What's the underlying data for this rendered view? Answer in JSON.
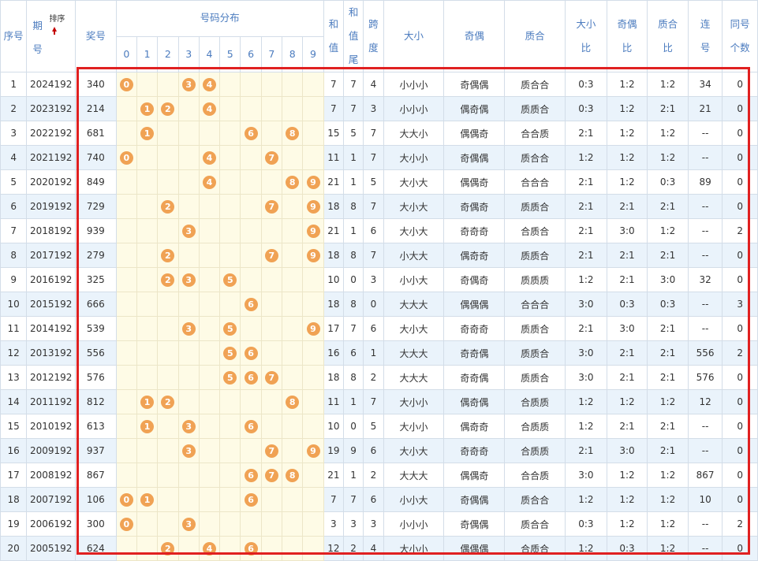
{
  "colors": {
    "header_text": "#4c7cbf",
    "ball": "#f0a254",
    "highlight_border": "#e02020",
    "stripe": "#eaf3fb",
    "dist_bg": "#fefbe6"
  },
  "header": {
    "serial": "序号",
    "period_top": "期",
    "period_bottom": "号",
    "sort_label": "排序",
    "sort_icon": "sort-up-arrow-icon",
    "number": "奖号",
    "distribution": "号码分布",
    "digits": [
      "0",
      "1",
      "2",
      "3",
      "4",
      "5",
      "6",
      "7",
      "8",
      "9"
    ],
    "sum_top": "和",
    "sum_bottom": "值",
    "sumtail_1": "和",
    "sumtail_2": "值",
    "sumtail_3": "尾",
    "span_top": "跨",
    "span_bottom": "度",
    "bigsmall": "大小",
    "oddeven": "奇偶",
    "primecomp": "质合",
    "bs_ratio_top": "大小",
    "bs_ratio_bottom": "比",
    "oe_ratio_top": "奇偶",
    "oe_ratio_bottom": "比",
    "pc_ratio_top": "质合",
    "pc_ratio_bottom": "比",
    "consec_top": "连",
    "consec_bottom": "号",
    "same_top": "同号",
    "same_bottom": "个数"
  },
  "rows": [
    {
      "serial": "1",
      "period": "2024192",
      "number": "340",
      "digits": [
        0,
        3,
        4
      ],
      "sum": "7",
      "sumtail": "7",
      "span": "4",
      "bs": "小小小",
      "oe": "奇偶偶",
      "pc": "质合合",
      "bs_ratio": "0:3",
      "oe_ratio": "1:2",
      "pc_ratio": "1:2",
      "consec": "34",
      "same": "0"
    },
    {
      "serial": "2",
      "period": "2023192",
      "number": "214",
      "digits": [
        1,
        2,
        4
      ],
      "sum": "7",
      "sumtail": "7",
      "span": "3",
      "bs": "小小小",
      "oe": "偶奇偶",
      "pc": "质质合",
      "bs_ratio": "0:3",
      "oe_ratio": "1:2",
      "pc_ratio": "2:1",
      "consec": "21",
      "same": "0"
    },
    {
      "serial": "3",
      "period": "2022192",
      "number": "681",
      "digits": [
        1,
        6,
        8
      ],
      "sum": "15",
      "sumtail": "5",
      "span": "7",
      "bs": "大大小",
      "oe": "偶偶奇",
      "pc": "合合质",
      "bs_ratio": "2:1",
      "oe_ratio": "1:2",
      "pc_ratio": "1:2",
      "consec": "--",
      "same": "0"
    },
    {
      "serial": "4",
      "period": "2021192",
      "number": "740",
      "digits": [
        0,
        4,
        7
      ],
      "sum": "11",
      "sumtail": "1",
      "span": "7",
      "bs": "大小小",
      "oe": "奇偶偶",
      "pc": "质合合",
      "bs_ratio": "1:2",
      "oe_ratio": "1:2",
      "pc_ratio": "1:2",
      "consec": "--",
      "same": "0"
    },
    {
      "serial": "5",
      "period": "2020192",
      "number": "849",
      "digits": [
        4,
        8,
        9
      ],
      "sum": "21",
      "sumtail": "1",
      "span": "5",
      "bs": "大小大",
      "oe": "偶偶奇",
      "pc": "合合合",
      "bs_ratio": "2:1",
      "oe_ratio": "1:2",
      "pc_ratio": "0:3",
      "consec": "89",
      "same": "0"
    },
    {
      "serial": "6",
      "period": "2019192",
      "number": "729",
      "digits": [
        2,
        7,
        9
      ],
      "sum": "18",
      "sumtail": "8",
      "span": "7",
      "bs": "大小大",
      "oe": "奇偶奇",
      "pc": "质质合",
      "bs_ratio": "2:1",
      "oe_ratio": "2:1",
      "pc_ratio": "2:1",
      "consec": "--",
      "same": "0"
    },
    {
      "serial": "7",
      "period": "2018192",
      "number": "939",
      "digits": [
        3,
        9
      ],
      "sum": "21",
      "sumtail": "1",
      "span": "6",
      "bs": "大小大",
      "oe": "奇奇奇",
      "pc": "合质合",
      "bs_ratio": "2:1",
      "oe_ratio": "3:0",
      "pc_ratio": "1:2",
      "consec": "--",
      "same": "2"
    },
    {
      "serial": "8",
      "period": "2017192",
      "number": "279",
      "digits": [
        2,
        7,
        9
      ],
      "sum": "18",
      "sumtail": "8",
      "span": "7",
      "bs": "小大大",
      "oe": "偶奇奇",
      "pc": "质质合",
      "bs_ratio": "2:1",
      "oe_ratio": "2:1",
      "pc_ratio": "2:1",
      "consec": "--",
      "same": "0"
    },
    {
      "serial": "9",
      "period": "2016192",
      "number": "325",
      "digits": [
        2,
        3,
        5
      ],
      "sum": "10",
      "sumtail": "0",
      "span": "3",
      "bs": "小小大",
      "oe": "奇偶奇",
      "pc": "质质质",
      "bs_ratio": "1:2",
      "oe_ratio": "2:1",
      "pc_ratio": "3:0",
      "consec": "32",
      "same": "0"
    },
    {
      "serial": "10",
      "period": "2015192",
      "number": "666",
      "digits": [
        6
      ],
      "sum": "18",
      "sumtail": "8",
      "span": "0",
      "bs": "大大大",
      "oe": "偶偶偶",
      "pc": "合合合",
      "bs_ratio": "3:0",
      "oe_ratio": "0:3",
      "pc_ratio": "0:3",
      "consec": "--",
      "same": "3"
    },
    {
      "serial": "11",
      "period": "2014192",
      "number": "539",
      "digits": [
        3,
        5,
        9
      ],
      "sum": "17",
      "sumtail": "7",
      "span": "6",
      "bs": "大小大",
      "oe": "奇奇奇",
      "pc": "质质合",
      "bs_ratio": "2:1",
      "oe_ratio": "3:0",
      "pc_ratio": "2:1",
      "consec": "--",
      "same": "0"
    },
    {
      "serial": "12",
      "period": "2013192",
      "number": "556",
      "digits": [
        5,
        6
      ],
      "sum": "16",
      "sumtail": "6",
      "span": "1",
      "bs": "大大大",
      "oe": "奇奇偶",
      "pc": "质质合",
      "bs_ratio": "3:0",
      "oe_ratio": "2:1",
      "pc_ratio": "2:1",
      "consec": "556",
      "same": "2"
    },
    {
      "serial": "13",
      "period": "2012192",
      "number": "576",
      "digits": [
        5,
        6,
        7
      ],
      "sum": "18",
      "sumtail": "8",
      "span": "2",
      "bs": "大大大",
      "oe": "奇奇偶",
      "pc": "质质合",
      "bs_ratio": "3:0",
      "oe_ratio": "2:1",
      "pc_ratio": "2:1",
      "consec": "576",
      "same": "0"
    },
    {
      "serial": "14",
      "period": "2011192",
      "number": "812",
      "digits": [
        1,
        2,
        8
      ],
      "sum": "11",
      "sumtail": "1",
      "span": "7",
      "bs": "大小小",
      "oe": "偶奇偶",
      "pc": "合质质",
      "bs_ratio": "1:2",
      "oe_ratio": "1:2",
      "pc_ratio": "1:2",
      "consec": "12",
      "same": "0"
    },
    {
      "serial": "15",
      "period": "2010192",
      "number": "613",
      "digits": [
        1,
        3,
        6
      ],
      "sum": "10",
      "sumtail": "0",
      "span": "5",
      "bs": "大小小",
      "oe": "偶奇奇",
      "pc": "合质质",
      "bs_ratio": "1:2",
      "oe_ratio": "2:1",
      "pc_ratio": "2:1",
      "consec": "--",
      "same": "0"
    },
    {
      "serial": "16",
      "period": "2009192",
      "number": "937",
      "digits": [
        3,
        7,
        9
      ],
      "sum": "19",
      "sumtail": "9",
      "span": "6",
      "bs": "大小大",
      "oe": "奇奇奇",
      "pc": "合质质",
      "bs_ratio": "2:1",
      "oe_ratio": "3:0",
      "pc_ratio": "2:1",
      "consec": "--",
      "same": "0"
    },
    {
      "serial": "17",
      "period": "2008192",
      "number": "867",
      "digits": [
        6,
        7,
        8
      ],
      "sum": "21",
      "sumtail": "1",
      "span": "2",
      "bs": "大大大",
      "oe": "偶偶奇",
      "pc": "合合质",
      "bs_ratio": "3:0",
      "oe_ratio": "1:2",
      "pc_ratio": "1:2",
      "consec": "867",
      "same": "0"
    },
    {
      "serial": "18",
      "period": "2007192",
      "number": "106",
      "digits": [
        0,
        1,
        6
      ],
      "sum": "7",
      "sumtail": "7",
      "span": "6",
      "bs": "小小大",
      "oe": "奇偶偶",
      "pc": "质合合",
      "bs_ratio": "1:2",
      "oe_ratio": "1:2",
      "pc_ratio": "1:2",
      "consec": "10",
      "same": "0"
    },
    {
      "serial": "19",
      "period": "2006192",
      "number": "300",
      "digits": [
        0,
        3
      ],
      "sum": "3",
      "sumtail": "3",
      "span": "3",
      "bs": "小小小",
      "oe": "奇偶偶",
      "pc": "质合合",
      "bs_ratio": "0:3",
      "oe_ratio": "1:2",
      "pc_ratio": "1:2",
      "consec": "--",
      "same": "2"
    },
    {
      "serial": "20",
      "period": "2005192",
      "number": "624",
      "digits": [
        2,
        4,
        6
      ],
      "sum": "12",
      "sumtail": "2",
      "span": "4",
      "bs": "大小小",
      "oe": "偶偶偶",
      "pc": "合质合",
      "bs_ratio": "1:2",
      "oe_ratio": "0:3",
      "pc_ratio": "1:2",
      "consec": "--",
      "same": "0"
    }
  ]
}
